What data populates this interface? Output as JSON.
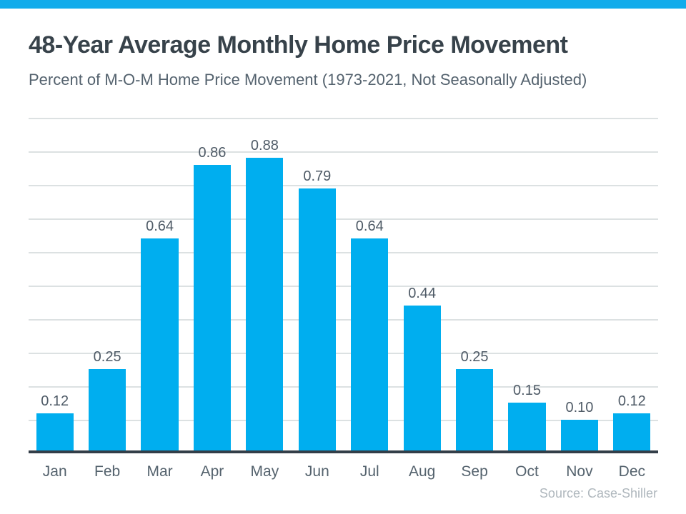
{
  "page": {
    "title": "48-Year Average Monthly Home Price Movement",
    "subtitle": "Percent of M-O-M Home Price Movement (1973-2021, Not Seasonally Adjusted)",
    "source": "Source: Case-Shiller"
  },
  "colors": {
    "accent_bar": "#12ACEB",
    "bar_fill": "#00AEEF",
    "title_text": "#37424A",
    "subtitle_text": "#54626E",
    "value_label_text": "#4E5A66",
    "month_label_text": "#54626D",
    "gridline": "#DCE1E2",
    "axis_line": "#333E48",
    "source_text": "#AFB7BD"
  },
  "chart_data": {
    "type": "bar",
    "title": "48-Year Average Monthly Home Price Movement",
    "subtitle": "Percent of M-O-M Home Price Movement (1973-2021, Not Seasonally Adjusted)",
    "categories": [
      "Jan",
      "Feb",
      "Mar",
      "Apr",
      "May",
      "Jun",
      "Jul",
      "Aug",
      "Sep",
      "Oct",
      "Nov",
      "Dec"
    ],
    "values": [
      0.12,
      0.25,
      0.64,
      0.86,
      0.88,
      0.79,
      0.64,
      0.44,
      0.25,
      0.15,
      0.1,
      0.12
    ],
    "value_labels": [
      "0.12",
      "0.25",
      "0.64",
      "0.86",
      "0.88",
      "0.79",
      "0.64",
      "0.44",
      "0.25",
      "0.15",
      "0.10",
      "0.12"
    ],
    "xlabel": "",
    "ylabel": "",
    "ylim": [
      0,
      1.0
    ],
    "gridline_step": 0.1,
    "grid": true,
    "legend": false,
    "value_labels_shown": true,
    "y_tick_labels_shown": false,
    "source": "Source: Case-Shiller"
  }
}
